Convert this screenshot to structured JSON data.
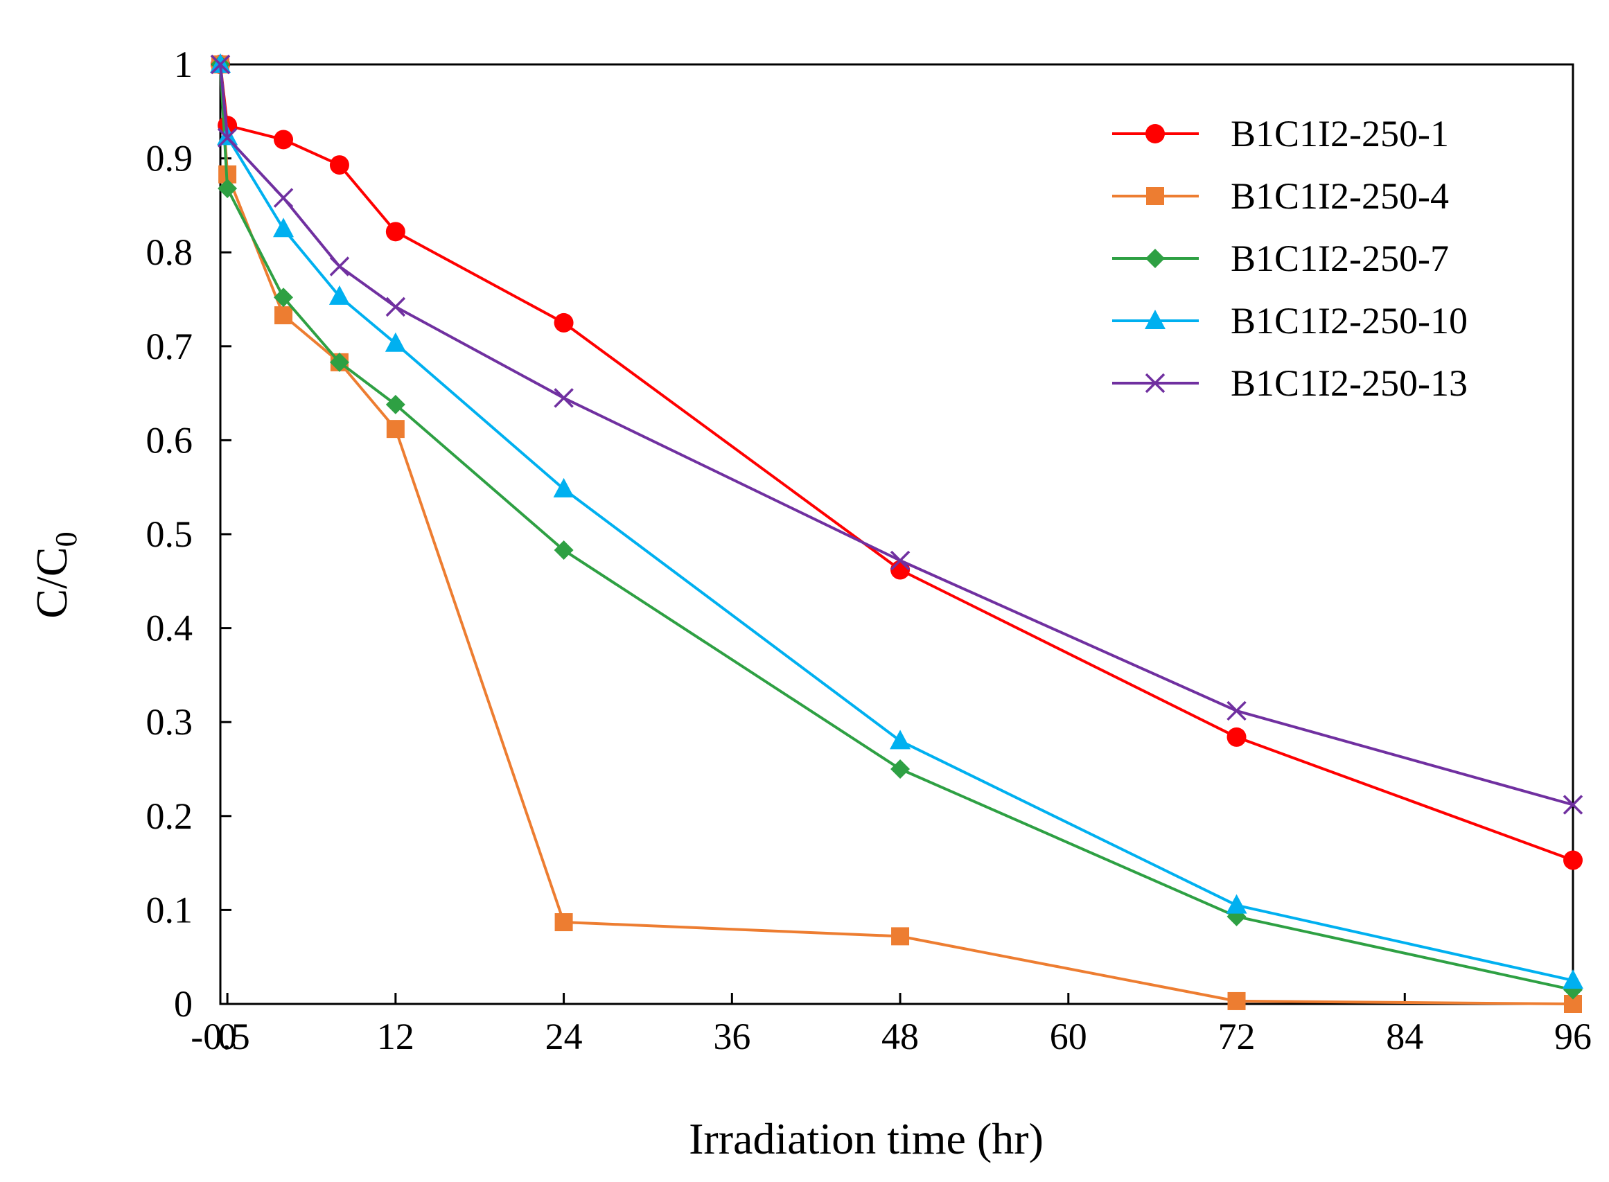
{
  "chart_data": {
    "type": "line",
    "title": "",
    "xlabel": "Irradiation time (hr)",
    "ylabel_main": "C/C",
    "ylabel_sub": "0",
    "xlim": [
      -0.5,
      96
    ],
    "ylim": [
      0,
      1
    ],
    "x_tick_labels": [
      "-0.5",
      "0",
      "12",
      "24",
      "36",
      "48",
      "60",
      "72",
      "84",
      "96"
    ],
    "y_tick_labels": [
      "0",
      "0.1",
      "0.2",
      "0.3",
      "0.4",
      "0.5",
      "0.6",
      "0.7",
      "0.8",
      "0.9",
      "1"
    ],
    "legend_position": "top-right",
    "grid": false,
    "x": [
      -0.5,
      0,
      4,
      8,
      12,
      24,
      48,
      72,
      96
    ],
    "series": [
      {
        "name": "B1C1I2-250-1",
        "color": "#ff0000",
        "marker": "circle",
        "values": [
          1.0,
          0.935,
          0.92,
          0.893,
          0.822,
          0.725,
          0.462,
          0.284,
          0.153
        ]
      },
      {
        "name": "B1C1I2-250-4",
        "color": "#ed7d31",
        "marker": "square",
        "values": [
          1.0,
          0.883,
          0.733,
          0.683,
          0.612,
          0.087,
          0.072,
          0.003,
          0.0
        ]
      },
      {
        "name": "B1C1I2-250-7",
        "color": "#2ea043",
        "marker": "diamond",
        "values": [
          1.0,
          0.868,
          0.752,
          0.683,
          0.638,
          0.483,
          0.25,
          0.093,
          0.015
        ]
      },
      {
        "name": "B1C1I2-250-10",
        "color": "#00b0f0",
        "marker": "triangle",
        "values": [
          1.0,
          0.923,
          0.825,
          0.753,
          0.703,
          0.548,
          0.28,
          0.105,
          0.025
        ]
      },
      {
        "name": "B1C1I2-250-13",
        "color": "#7030a0",
        "marker": "x",
        "values": [
          1.0,
          0.922,
          0.858,
          0.785,
          0.742,
          0.645,
          0.472,
          0.312,
          0.212
        ]
      }
    ]
  }
}
